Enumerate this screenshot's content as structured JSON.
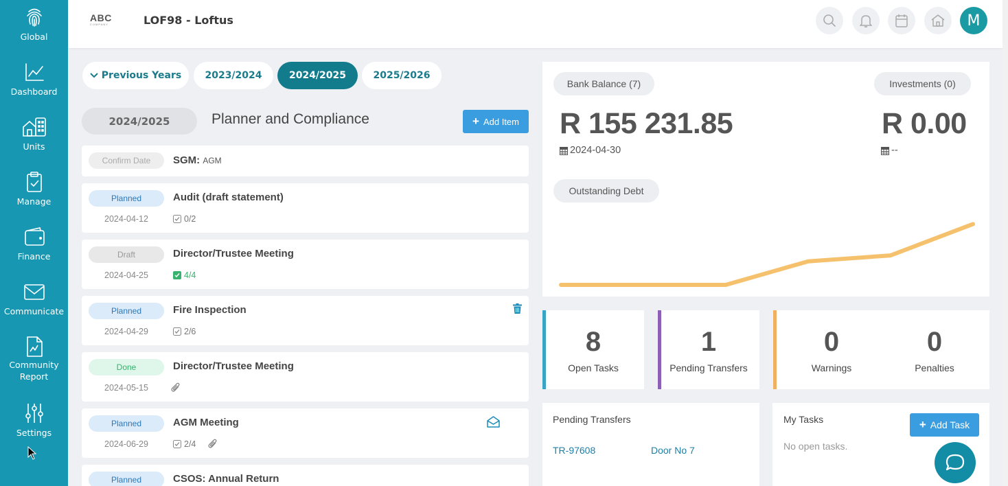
{
  "sidebar": {
    "items": [
      {
        "label": "Global",
        "icon": "fingerprint-icon"
      },
      {
        "label": "Dashboard",
        "icon": "chart-line-icon"
      },
      {
        "label": "Units",
        "icon": "buildings-icon"
      },
      {
        "label": "Manage",
        "icon": "clipboard-check-icon"
      },
      {
        "label": "Finance",
        "icon": "wallet-icon"
      },
      {
        "label": "Communicate",
        "icon": "envelope-icon"
      },
      {
        "label": "Community",
        "label2": "Report",
        "icon": "report-icon"
      },
      {
        "label": "Settings",
        "icon": "sliders-icon"
      }
    ]
  },
  "header": {
    "logo_text": "ABC",
    "logo_sub": "COMPANY",
    "title": "LOF98 - Loftus",
    "avatar_initial": "M",
    "icons": [
      "search-icon",
      "bell-icon",
      "calendar-icon",
      "home-icon"
    ]
  },
  "years": {
    "tabs": [
      {
        "label": "Previous Years",
        "active": false
      },
      {
        "label": "2023/2024",
        "active": false
      },
      {
        "label": "2024/2025",
        "active": true
      },
      {
        "label": "2025/2026",
        "active": false
      }
    ]
  },
  "planner": {
    "year_pill": "2024/2025",
    "title": "Planner and Compliance",
    "add_label": "Add Item",
    "items": [
      {
        "status": "Confirm Date",
        "title": "SGM:",
        "subtitle": "AGM"
      },
      {
        "status": "Planned",
        "title": "Audit (draft statement)",
        "date": "2024-04-12",
        "checklist": "0/2"
      },
      {
        "status": "Draft",
        "title": "Director/Trustee Meeting",
        "date": "2024-04-25",
        "checklist": "4/4"
      },
      {
        "status": "Planned",
        "title": "Fire Inspection",
        "date": "2024-04-29",
        "checklist": "2/6"
      },
      {
        "status": "Done",
        "title": "Director/Trustee Meeting",
        "date": "2024-05-15"
      },
      {
        "status": "Planned",
        "title": "AGM Meeting",
        "date": "2024-06-29",
        "checklist": "2/4"
      },
      {
        "status": "Planned",
        "title": "CSOS: Annual Return"
      }
    ]
  },
  "finance": {
    "bank_label": "Bank Balance (7)",
    "bank_amount": "R 155 231.85",
    "bank_date": "2024-04-30",
    "invest_label": "Investments (0)",
    "invest_amount": "R 0.00",
    "invest_date": "--",
    "debt_label": "Outstanding Debt",
    "line_color": "#f5c16c"
  },
  "chart_data": {
    "type": "line",
    "x": [
      1,
      2,
      3,
      4,
      5,
      6
    ],
    "series": [
      {
        "values": [
          0,
          0,
          0,
          1.2,
          1.5,
          3.1
        ]
      }
    ],
    "ylim": [
      0,
      3.5
    ]
  },
  "stats": [
    {
      "value": "8",
      "label": "Open Tasks",
      "color": "#3ba3c6"
    },
    {
      "value": "1",
      "label": "Pending Transfers",
      "color": "#8e5fb7"
    },
    {
      "value": "0",
      "label": "Warnings",
      "color": "#f0b064"
    },
    {
      "value": "0",
      "label": "Penalties"
    }
  ],
  "transfers": {
    "title": "Pending Transfers",
    "rows": [
      {
        "ref": "TR-97608",
        "unit": "Door No 7"
      }
    ]
  },
  "tasks": {
    "title": "My Tasks",
    "add_label": "Add Task",
    "empty": "No open tasks."
  }
}
